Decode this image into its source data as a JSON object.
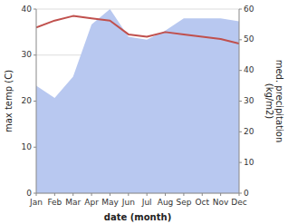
{
  "chart_data": {
    "type": "line",
    "xlabel": "date (month)",
    "ylabel": "max temp (C)",
    "y2label": "med. precipitation\n(kg/m2)",
    "categories": [
      "Jan",
      "Feb",
      "Mar",
      "Apr",
      "May",
      "Jun",
      "Jul",
      "Aug",
      "Sep",
      "Oct",
      "Nov",
      "Dec"
    ],
    "series": [
      {
        "type": "area",
        "axis": "y2",
        "color": "#b8c8f0",
        "values": [
          35,
          31,
          38,
          55,
          60,
          51,
          50,
          53,
          57,
          57,
          57,
          56
        ]
      },
      {
        "type": "line",
        "color": "#c0504d",
        "values": [
          36.0,
          37.5,
          38.5,
          38.0,
          37.5,
          34.5,
          34.0,
          35.0,
          34.5,
          34.0,
          33.5,
          32.5
        ]
      }
    ],
    "ylim": [
      0,
      40
    ],
    "yticks": [
      0,
      10,
      20,
      30,
      40
    ],
    "y2lim": [
      0,
      60
    ],
    "y2ticks": [
      0,
      10,
      20,
      30,
      40,
      50,
      60
    ],
    "grid": true
  }
}
